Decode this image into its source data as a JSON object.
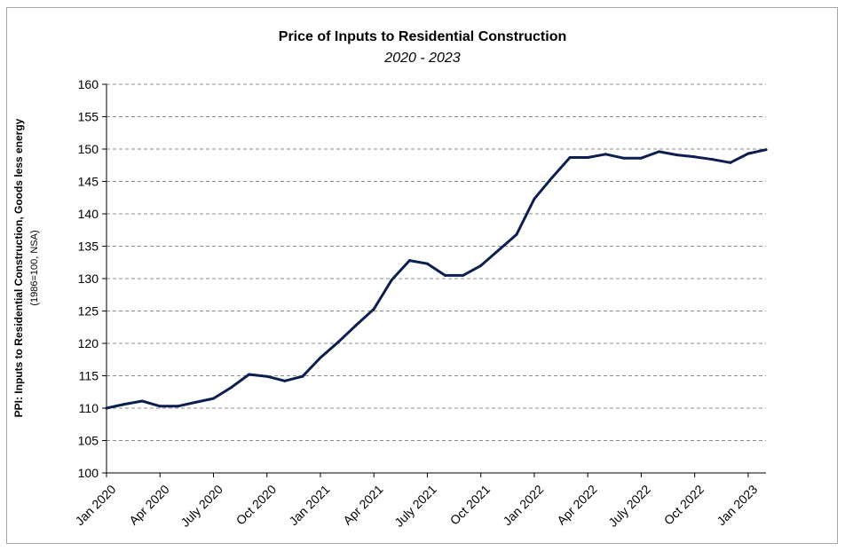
{
  "chart_data": {
    "type": "line",
    "title": "Price of Inputs to Residential Construction",
    "subtitle": "2020 - 2023",
    "ylabel": "PPI: Inputs to Residential Construction, Goods less energy",
    "ylabel_note": "(1986=100, NSA)",
    "xlabel": "",
    "ylim": [
      100,
      160
    ],
    "y_ticks": [
      100,
      105,
      110,
      115,
      120,
      125,
      130,
      135,
      140,
      145,
      150,
      155,
      160
    ],
    "x_tick_labels": [
      "Jan 2020",
      "Apr 2020",
      "July 2020",
      "Oct 2020",
      "Jan 2021",
      "Apr 2021",
      "July 2021",
      "Oct 2021",
      "Jan 2022",
      "Apr 2022",
      "July 2022",
      "Oct 2022",
      "Jan 2023"
    ],
    "grid": "horizontal-dashed",
    "legend": "none",
    "line_color": "#0c1f4f",
    "x": [
      "Jan 2020",
      "Feb 2020",
      "Mar 2020",
      "Apr 2020",
      "May 2020",
      "Jun 2020",
      "Jul 2020",
      "Aug 2020",
      "Sep 2020",
      "Oct 2020",
      "Nov 2020",
      "Dec 2020",
      "Jan 2021",
      "Feb 2021",
      "Mar 2021",
      "Apr 2021",
      "May 2021",
      "Jun 2021",
      "Jul 2021",
      "Aug 2021",
      "Sep 2021",
      "Oct 2021",
      "Nov 2021",
      "Dec 2021",
      "Jan 2022",
      "Feb 2022",
      "Mar 2022",
      "Apr 2022",
      "May 2022",
      "Jun 2022",
      "Jul 2022",
      "Aug 2022",
      "Sep 2022",
      "Oct 2022",
      "Nov 2022",
      "Dec 2022",
      "Jan 2023",
      "Feb 2023"
    ],
    "series": [
      {
        "values": [
          110.0,
          110.6,
          111.1,
          110.3,
          110.3,
          110.9,
          111.5,
          113.2,
          115.2,
          114.9,
          114.2,
          114.9,
          117.8,
          120.2,
          122.8,
          125.3,
          129.8,
          132.8,
          132.3,
          130.5,
          130.5,
          132.0,
          134.4,
          136.8,
          142.3,
          145.6,
          148.7,
          148.7,
          149.2,
          148.6,
          148.6,
          149.6,
          149.1,
          148.8,
          148.4,
          147.9,
          149.3,
          149.9
        ]
      }
    ]
  }
}
